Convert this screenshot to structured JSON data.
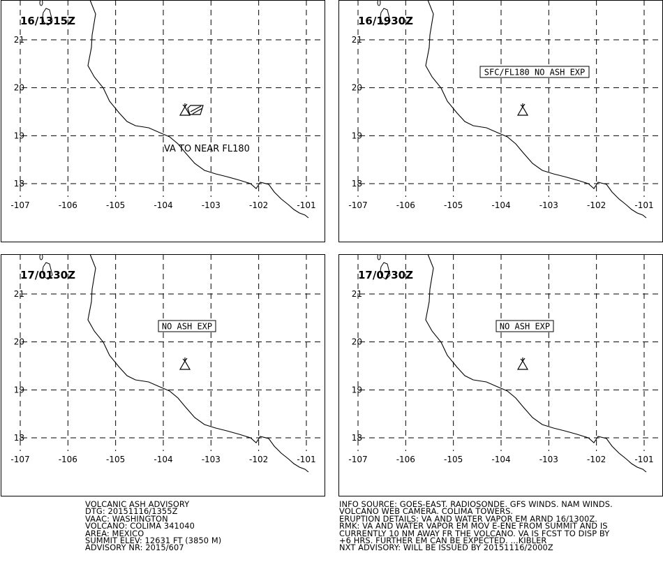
{
  "map": {
    "x_ticks": [
      "-107",
      "-106",
      "-105",
      "-104",
      "-103",
      "-102",
      "-101"
    ],
    "y_ticks": [
      "21",
      "20",
      "19",
      "18"
    ],
    "volcano_icon": "volcano-triangle-icon"
  },
  "panels": [
    {
      "time": "16/1315Z",
      "annotation": "VA TO NEAR FL180",
      "boxed_label": ""
    },
    {
      "time": "16/1930Z",
      "annotation": "",
      "boxed_label": "SFC/FL180 NO ASH EXP"
    },
    {
      "time": "17/0130Z",
      "annotation": "",
      "boxed_label": "NO ASH EXP"
    },
    {
      "time": "17/0730Z",
      "annotation": "",
      "boxed_label": "NO ASH EXP"
    }
  ],
  "advisory_left": [
    "VOLCANIC ASH ADVISORY",
    "DTG: 20151116/1355Z",
    "VAAC: WASHINGTON",
    "VOLCANO: COLIMA 341040",
    "AREA: MEXICO",
    "SUMMIT ELEV: 12631 FT (3850 M)",
    "ADVISORY NR: 2015/607"
  ],
  "advisory_right": [
    "INFO SOURCE: GOES-EAST. RADIOSONDE. GFS WINDS. NAM WINDS.",
    "VOLCANO WEB CAMERA. COLIMA TOWERS.",
    "ERUPTION DETAILS: VA AND WATER VAPOR EM ARND 16/1300Z.",
    "RMK: VA AND WATER VAPOR EM MOV E-ENE FROM SUMMIT AND IS",
    "CURRENTLY 10 NM AWAY FR THE VOLCANO. VA IS FCST TO DISP BY",
    "+6 HRS. FURTHER EM CAN BE EXPECTED. ...KIBLER",
    "NXT ADVISORY: WILL BE ISSUED BY 20151116/2000Z"
  ]
}
